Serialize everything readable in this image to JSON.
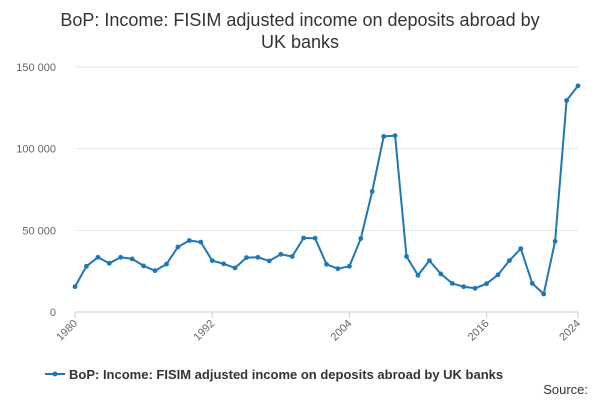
{
  "chart_data": {
    "type": "line",
    "title_lines": [
      "BoP: Income: FISIM adjusted income on deposits abroad by",
      "UK banks"
    ],
    "xlabel": "",
    "ylabel": "",
    "x_ticks": [
      "1980",
      "1992",
      "2004",
      "2016",
      "2024"
    ],
    "y_ticks": [
      "0",
      "50 000",
      "100 000",
      "150 000"
    ],
    "xlim": [
      1980,
      2024
    ],
    "ylim": [
      0,
      150000
    ],
    "grid": true,
    "legend": "bottom",
    "source_label": "Source:",
    "series": [
      {
        "name": "BoP: Income: FISIM adjusted income on deposits abroad by UK banks",
        "color": "#1f77b4",
        "x": [
          1980,
          1981,
          1982,
          1983,
          1984,
          1985,
          1986,
          1987,
          1988,
          1989,
          1990,
          1991,
          1992,
          1993,
          1994,
          1995,
          1996,
          1997,
          1998,
          1999,
          2000,
          2001,
          2002,
          2003,
          2004,
          2005,
          2006,
          2007,
          2008,
          2009,
          2010,
          2011,
          2012,
          2013,
          2014,
          2015,
          2016,
          2017,
          2018,
          2019,
          2020,
          2021,
          2022,
          2023,
          2024
        ],
        "values": [
          15500,
          28000,
          33500,
          29800,
          33500,
          32500,
          28200,
          25300,
          29300,
          39800,
          43800,
          42800,
          31500,
          29500,
          27000,
          33300,
          33500,
          31300,
          35300,
          34000,
          45300,
          45200,
          29200,
          26500,
          28000,
          45000,
          73800,
          107500,
          108000,
          34000,
          22500,
          31500,
          23300,
          17500,
          15500,
          14500,
          17300,
          22800,
          31500,
          38800,
          17500,
          11000,
          43300,
          129500,
          138500
        ]
      }
    ]
  }
}
